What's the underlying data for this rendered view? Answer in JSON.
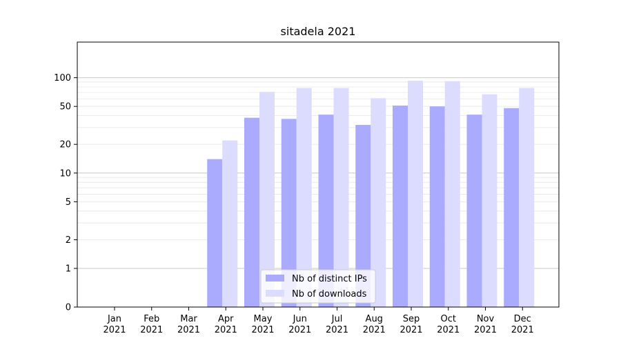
{
  "chart_data": {
    "type": "bar",
    "title": "sitadela 2021",
    "xlabel": "",
    "ylabel": "",
    "yscale": "symlog",
    "ylim": [
      0,
      110
    ],
    "grid": "horizontal",
    "legend_position": "bottom-center",
    "categories": [
      [
        "Jan",
        "2021"
      ],
      [
        "Feb",
        "2021"
      ],
      [
        "Mar",
        "2021"
      ],
      [
        "Apr",
        "2021"
      ],
      [
        "May",
        "2021"
      ],
      [
        "Jun",
        "2021"
      ],
      [
        "Jul",
        "2021"
      ],
      [
        "Aug",
        "2021"
      ],
      [
        "Sep",
        "2021"
      ],
      [
        "Oct",
        "2021"
      ],
      [
        "Nov",
        "2021"
      ],
      [
        "Dec",
        "2021"
      ]
    ],
    "yticks": [
      0,
      1,
      2,
      5,
      10,
      20,
      50,
      100
    ],
    "series": [
      {
        "name": "Nb of distinct IPs",
        "color": "#aaaaff",
        "values": [
          0,
          0,
          0,
          14,
          38,
          37,
          41,
          32,
          51,
          50,
          41,
          48
        ]
      },
      {
        "name": "Nb of downloads",
        "color": "#dcdcff",
        "values": [
          0,
          0,
          0,
          22,
          71,
          78,
          78,
          61,
          93,
          92,
          67,
          78
        ]
      }
    ]
  }
}
